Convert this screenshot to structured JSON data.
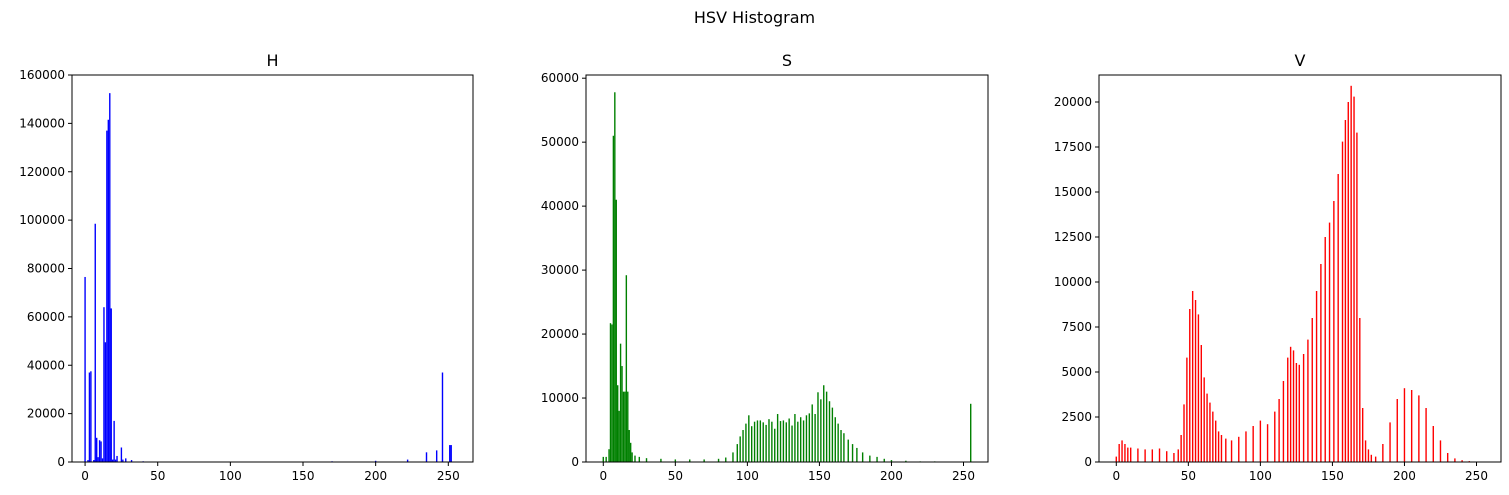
{
  "figure": {
    "suptitle": "HSV Histogram"
  },
  "chart_data": [
    {
      "type": "bar",
      "title": "H",
      "color": "#0000ff",
      "xlim": [
        -9,
        267
      ],
      "ylim": [
        0,
        160000
      ],
      "xticks": [
        0,
        50,
        100,
        150,
        200,
        250
      ],
      "yticks": [
        0,
        20000,
        40000,
        60000,
        80000,
        100000,
        120000,
        140000,
        160000
      ],
      "x": [
        0,
        1,
        2,
        3,
        4,
        5,
        6,
        7,
        8,
        9,
        10,
        11,
        12,
        13,
        14,
        15,
        16,
        17,
        18,
        19,
        20,
        21,
        22,
        23,
        24,
        25,
        26,
        27,
        28,
        30,
        32,
        36,
        40,
        170,
        200,
        222,
        235,
        242,
        246,
        251,
        252
      ],
      "values": [
        76500,
        0,
        800,
        37000,
        37500,
        0,
        800,
        98500,
        10000,
        2000,
        9000,
        8500,
        1500,
        64000,
        49500,
        137000,
        141500,
        152500,
        63500,
        1000,
        17000,
        1000,
        2500,
        0,
        0,
        6000,
        1000,
        0,
        1500,
        0,
        800,
        0,
        300,
        300,
        500,
        1000,
        4000,
        4800,
        37000,
        7000,
        7000
      ]
    },
    {
      "type": "bar",
      "title": "S",
      "color": "#008000",
      "xlim": [
        -12,
        267
      ],
      "ylim": [
        0,
        60500
      ],
      "xticks": [
        0,
        50,
        100,
        150,
        200,
        250
      ],
      "yticks": [
        0,
        10000,
        20000,
        30000,
        40000,
        50000,
        60000
      ],
      "x": [
        0,
        2,
        4,
        5,
        6,
        7,
        8,
        9,
        10,
        11,
        12,
        13,
        14,
        15,
        16,
        17,
        18,
        19,
        20,
        22,
        25,
        30,
        40,
        50,
        60,
        70,
        80,
        85,
        90,
        93,
        95,
        97,
        99,
        101,
        103,
        105,
        107,
        109,
        111,
        113,
        115,
        117,
        119,
        121,
        123,
        125,
        127,
        129,
        131,
        133,
        135,
        137,
        139,
        141,
        143,
        145,
        147,
        149,
        151,
        153,
        155,
        157,
        159,
        161,
        163,
        165,
        167,
        170,
        173,
        176,
        180,
        185,
        190,
        195,
        200,
        210,
        220,
        230,
        240,
        255
      ],
      "values": [
        800,
        800,
        2000,
        21700,
        21500,
        51000,
        57800,
        41000,
        12000,
        8000,
        18500,
        15000,
        11000,
        11000,
        29200,
        11000,
        5000,
        3000,
        1500,
        1000,
        800,
        600,
        500,
        400,
        400,
        400,
        500,
        700,
        1500,
        2800,
        4000,
        5000,
        6000,
        7300,
        5600,
        6300,
        6500,
        6500,
        6200,
        5800,
        6700,
        6300,
        5200,
        7500,
        6400,
        6500,
        6200,
        6800,
        5700,
        7500,
        6300,
        7000,
        6500,
        7300,
        7600,
        9000,
        7500,
        10900,
        9800,
        12000,
        11000,
        9500,
        8500,
        7000,
        6000,
        5000,
        4500,
        3500,
        2800,
        2200,
        1500,
        1000,
        800,
        500,
        300,
        200,
        100,
        100,
        50,
        9100
      ]
    },
    {
      "type": "bar",
      "title": "V",
      "color": "#ff0000",
      "xlim": [
        -12,
        267
      ],
      "ylim": [
        0,
        21500
      ],
      "xticks": [
        0,
        50,
        100,
        150,
        200,
        250
      ],
      "yticks": [
        0,
        2500,
        5000,
        7500,
        10000,
        12500,
        15000,
        17500,
        20000
      ],
      "x": [
        0,
        2,
        4,
        6,
        8,
        10,
        15,
        20,
        25,
        30,
        35,
        40,
        43,
        45,
        47,
        49,
        51,
        53,
        55,
        57,
        59,
        61,
        63,
        65,
        67,
        69,
        71,
        73,
        76,
        80,
        85,
        90,
        95,
        100,
        105,
        110,
        113,
        116,
        119,
        121,
        123,
        125,
        127,
        130,
        133,
        136,
        139,
        142,
        145,
        148,
        151,
        154,
        157,
        159,
        161,
        163,
        165,
        167,
        169,
        171,
        173,
        175,
        177,
        180,
        185,
        190,
        195,
        200,
        205,
        210,
        215,
        220,
        225,
        230,
        235,
        240,
        245
      ],
      "values": [
        300,
        1000,
        1200,
        1000,
        800,
        800,
        750,
        700,
        700,
        750,
        600,
        500,
        700,
        1500,
        3200,
        5800,
        8500,
        9500,
        9000,
        8200,
        6500,
        4700,
        3800,
        3300,
        2800,
        2300,
        1700,
        1500,
        1300,
        1200,
        1400,
        1700,
        2000,
        2300,
        2100,
        2800,
        3500,
        4500,
        5800,
        6400,
        6200,
        5500,
        5400,
        6000,
        6800,
        8000,
        9500,
        11000,
        12500,
        13300,
        14500,
        16000,
        17800,
        19000,
        20000,
        20900,
        20300,
        18300,
        8000,
        3000,
        1200,
        700,
        400,
        300,
        1000,
        2200,
        3500,
        4100,
        4000,
        3700,
        3000,
        2000,
        1200,
        500,
        200,
        100,
        50
      ]
    }
  ]
}
